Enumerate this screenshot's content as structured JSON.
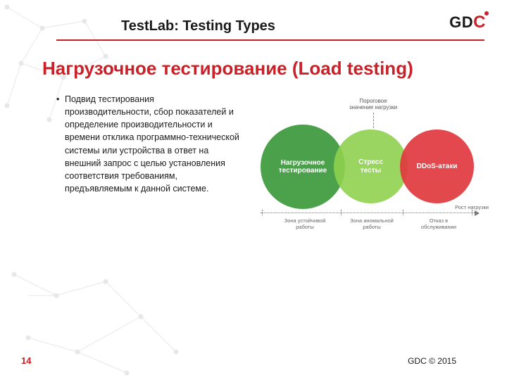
{
  "colors": {
    "accent": "#c92127",
    "text": "#1a1a1a",
    "net_line": "#bdbdbd",
    "axis": "#777777"
  },
  "header": {
    "title": "TestLab: Testing Types",
    "logo_text": "GD",
    "logo_accent": "C"
  },
  "subtitle": "Нагрузочное тестирование (Load testing)",
  "bullet": "Подвид тестирования производительности, сбор показателей и определение производительности и времени отклика программно-технической системы или устройства в ответ на внешний запрос с целью установления соответствия требованиям, предъявляемым к данной системе.",
  "diagram": {
    "type": "venn",
    "threshold_label": "Пороговое\nзначение нагрузки",
    "axis_right_label": "Рост нагрузки",
    "circles": [
      {
        "label": "Нагрузочное\nтестирование",
        "fill": "#3c9a3c",
        "opacity": 0.92
      },
      {
        "label": "Стресс\nтесты",
        "fill": "#8fd14f",
        "opacity": 0.9
      },
      {
        "label": "DDoS-атаки",
        "fill": "#e0393e",
        "opacity": 0.92
      }
    ],
    "zones": [
      "Зона устойчивой\nработы",
      "Зона аномальной\nработы",
      "Отказ в\nобслуживании"
    ]
  },
  "footer": {
    "page": "14",
    "copyright": "GDC © 2015"
  }
}
